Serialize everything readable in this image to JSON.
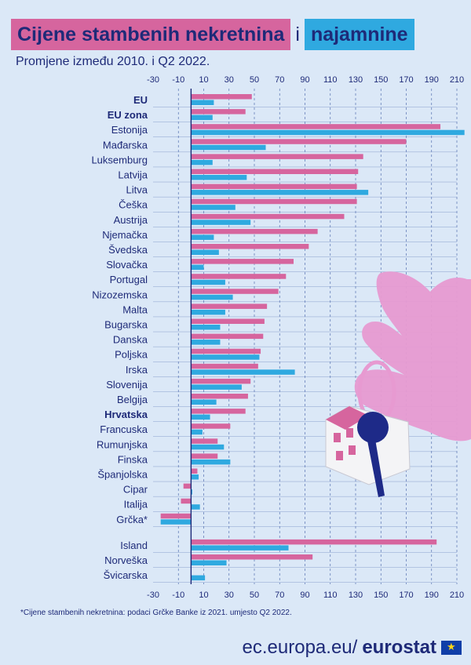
{
  "title": {
    "part1": "Cijene stambenih nekretnina",
    "connector": "i",
    "part2": "najamnine"
  },
  "subtitle": "Promjene između 2010. i Q2 2022.",
  "footnote": "*Cijene stambenih nekretnina: podaci Grčke Banke iz 2021. umjesto Q2 2022.",
  "brand": {
    "domain": "ec.europa.eu/",
    "name": "eurostat"
  },
  "colors": {
    "prices": "#d6659e",
    "rents": "#2fa9e0",
    "axis": "#1e2a78",
    "grid": "#5570b0"
  },
  "chart_data": {
    "type": "bar",
    "orientation": "horizontal",
    "xlim": [
      -30,
      210
    ],
    "ticks": [
      -30,
      -10,
      10,
      30,
      50,
      70,
      90,
      110,
      130,
      150,
      170,
      190,
      210
    ],
    "grid": true,
    "categories": [
      "EU",
      "EU zona",
      "Estonija",
      "Mađarska",
      "Luksemburg",
      "Latvija",
      "Litva",
      "Češka",
      "Austrija",
      "Njemačka",
      "Švedska",
      "Slovačka",
      "Portugal",
      "Nizozemska",
      "Malta",
      "Bugarska",
      "Danska",
      "Poljska",
      "Irska",
      "Slovenija",
      "Belgija",
      "Hrvatska",
      "Francuska",
      "Rumunjska",
      "Finska",
      "Španjolska",
      "Cipar",
      "Italija",
      "Grčka*",
      "Island",
      "Norveška",
      "Švicarska"
    ],
    "bold_categories": [
      "EU",
      "EU zona",
      "Hrvatska"
    ],
    "series": [
      {
        "values": [
          48,
          43,
          197,
          170,
          136,
          132,
          131,
          131,
          121,
          100,
          93,
          81,
          75,
          69,
          60,
          58,
          57,
          55,
          53,
          47,
          45,
          43,
          31,
          21,
          21,
          5,
          -6,
          -8,
          -24,
          194,
          96,
          null
        ]
      },
      {
        "values": [
          18,
          17,
          216,
          59,
          17,
          44,
          140,
          35,
          47,
          18,
          22,
          10,
          27,
          33,
          27,
          23,
          23,
          54,
          82,
          40,
          20,
          15,
          9,
          26,
          31,
          6,
          1,
          7,
          -24,
          77,
          28,
          11
        ]
      }
    ]
  }
}
